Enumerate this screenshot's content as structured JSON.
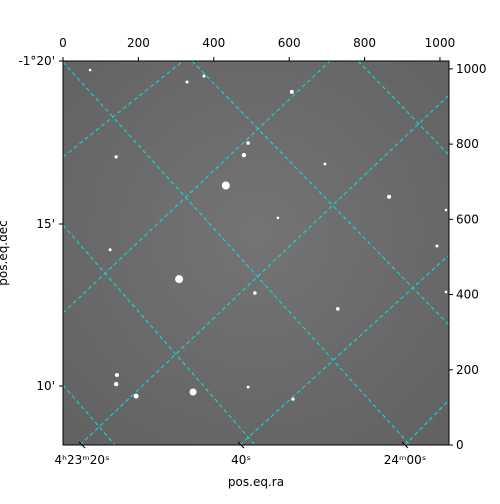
{
  "chart_data": {
    "type": "image",
    "x_label": "pos.eq.ra",
    "y_label": "pos.eq.dec",
    "xlim": [
      0,
      1024
    ],
    "ylim": [
      0,
      1021
    ],
    "xticks": [
      0,
      200,
      400,
      600,
      800,
      1000
    ],
    "yticks": [
      0,
      200,
      400,
      600,
      800,
      1000
    ],
    "ra_ticks": [
      "4ʰ23ᵐ20ˢ",
      "40ˢ",
      "24ᵐ00ˢ"
    ],
    "dec_ticks": [
      "-1°20'",
      "15'",
      "10'"
    ],
    "grid_color": "#00e5e5",
    "stars": {
      "x": [
        432,
        308,
        345,
        194,
        141,
        143,
        480,
        491,
        607,
        374,
        329,
        141,
        865,
        509,
        729,
        610,
        125,
        992,
        695,
        570,
        72,
        491,
        1016,
        1016
      ],
      "y": [
        690,
        441,
        141,
        130,
        162,
        186,
        771,
        803,
        939,
        981,
        965,
        766,
        660,
        404,
        362,
        122,
        519,
        529,
        747,
        604,
        997,
        154,
        625,
        407
      ],
      "sizes": [
        4,
        4,
        3.5,
        2.5,
        2.2,
        2,
        2.2,
        1.8,
        2,
        1.6,
        1.5,
        1.6,
        2,
        1.8,
        1.8,
        1.6,
        1.5,
        1.5,
        1.4,
        1.3,
        1.3,
        1.4,
        1.3,
        1.3
      ]
    }
  }
}
